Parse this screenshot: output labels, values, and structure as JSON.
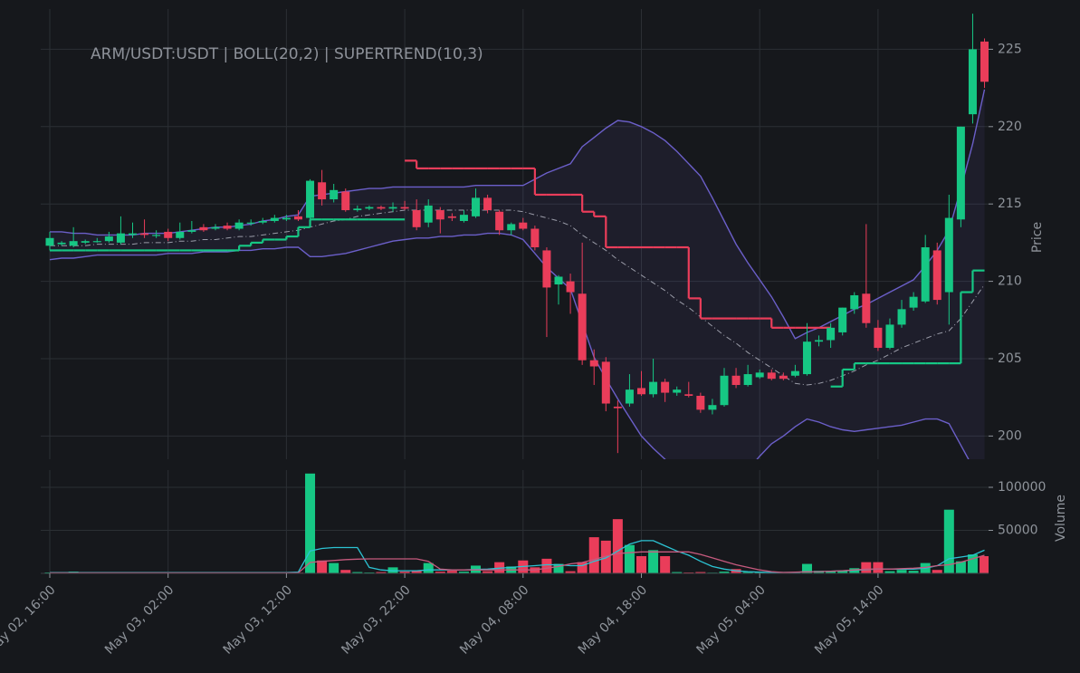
{
  "chart_data": {
    "type": "candlestick",
    "title": "ARM/USDT:USDT | BOLL(20,2) | SUPERTREND(10,3)",
    "x": [
      "May 02, 16:00",
      "May 02, 17:00",
      "May 02, 18:00",
      "May 02, 19:00",
      "May 02, 20:00",
      "May 02, 21:00",
      "May 02, 22:00",
      "May 02, 23:00",
      "May 03, 00:00",
      "May 03, 01:00",
      "May 03, 02:00",
      "May 03, 03:00",
      "May 03, 04:00",
      "May 03, 05:00",
      "May 03, 06:00",
      "May 03, 07:00",
      "May 03, 08:00",
      "May 03, 09:00",
      "May 03, 10:00",
      "May 03, 11:00",
      "May 03, 12:00",
      "May 03, 13:00",
      "May 03, 14:00",
      "May 03, 15:00",
      "May 03, 16:00",
      "May 03, 17:00",
      "May 03, 18:00",
      "May 03, 19:00",
      "May 03, 20:00",
      "May 03, 21:00",
      "May 03, 22:00",
      "May 03, 23:00",
      "May 04, 00:00",
      "May 04, 01:00",
      "May 04, 02:00",
      "May 04, 03:00",
      "May 04, 04:00",
      "May 04, 05:00",
      "May 04, 06:00",
      "May 04, 07:00",
      "May 04, 08:00",
      "May 04, 09:00",
      "May 04, 10:00",
      "May 04, 11:00",
      "May 04, 12:00",
      "May 04, 13:00",
      "May 04, 14:00",
      "May 04, 15:00",
      "May 04, 16:00",
      "May 04, 17:00",
      "May 04, 18:00",
      "May 04, 19:00",
      "May 04, 20:00",
      "May 04, 21:00",
      "May 04, 22:00",
      "May 04, 23:00",
      "May 05, 00:00",
      "May 05, 01:00",
      "May 05, 02:00",
      "May 05, 03:00",
      "May 05, 04:00",
      "May 05, 05:00",
      "May 05, 06:00",
      "May 05, 07:00",
      "May 05, 08:00",
      "May 05, 09:00",
      "May 05, 10:00",
      "May 05, 11:00",
      "May 05, 12:00",
      "May 05, 13:00",
      "May 05, 14:00",
      "May 05, 15:00",
      "May 05, 16:00",
      "May 05, 17:00",
      "May 05, 18:00",
      "May 05, 19:00",
      "May 05, 20:00",
      "May 05, 21:00",
      "May 05, 22:00",
      "May 05, 23:00"
    ],
    "xticks": [
      "May 02, 16:00",
      "May 03, 02:00",
      "May 03, 12:00",
      "May 03, 22:00",
      "May 04, 08:00",
      "May 04, 18:00",
      "May 05, 04:00",
      "May 05, 14:00"
    ],
    "open": [
      212.3,
      212.4,
      212.3,
      212.5,
      212.6,
      212.6,
      212.5,
      213.0,
      213.1,
      213.0,
      213.2,
      212.8,
      213.2,
      213.5,
      213.4,
      213.6,
      213.4,
      213.8,
      213.8,
      213.9,
      214.0,
      214.2,
      214.1,
      216.4,
      215.3,
      215.8,
      214.6,
      214.7,
      214.8,
      214.7,
      214.8,
      214.6,
      213.8,
      214.6,
      214.2,
      213.9,
      214.2,
      215.4,
      214.5,
      213.3,
      213.8,
      213.4,
      212.0,
      209.8,
      210.0,
      209.2,
      204.9,
      204.8,
      201.9,
      202.1,
      203.1,
      202.7,
      203.5,
      202.8,
      202.7,
      202.6,
      201.7,
      202.0,
      203.9,
      203.3,
      203.8,
      204.1,
      203.9,
      203.9,
      204.0,
      206.1,
      206.2,
      206.7,
      208.2,
      209.2,
      207.0,
      205.7,
      207.2,
      208.3,
      208.7,
      212.0,
      209.3,
      214.0,
      220.8,
      225.5
    ],
    "high": [
      213.2,
      212.6,
      213.5,
      212.7,
      212.8,
      213.2,
      214.2,
      213.8,
      214.0,
      213.3,
      213.4,
      213.8,
      213.9,
      213.7,
      213.7,
      213.8,
      214.0,
      214.0,
      214.1,
      214.3,
      214.3,
      214.6,
      216.6,
      217.2,
      216.3,
      216.0,
      214.9,
      214.9,
      214.9,
      215.1,
      215.2,
      215.3,
      215.3,
      214.8,
      214.4,
      214.6,
      216.0,
      215.6,
      214.6,
      213.8,
      214.1,
      213.6,
      212.2,
      210.4,
      210.5,
      212.5,
      205.6,
      205.1,
      202.3,
      204.0,
      204.2,
      205.0,
      203.7,
      203.2,
      203.5,
      202.8,
      202.4,
      204.4,
      204.4,
      204.6,
      204.3,
      204.3,
      204.1,
      204.6,
      207.3,
      206.5,
      207.3,
      208.3,
      209.3,
      213.7,
      207.5,
      207.6,
      208.8,
      209.3,
      213.0,
      212.5,
      215.6,
      220.0,
      227.3,
      225.7
    ],
    "low": [
      212.0,
      212.3,
      212.2,
      212.4,
      212.5,
      212.5,
      212.4,
      212.8,
      212.8,
      212.8,
      212.6,
      212.7,
      213.1,
      213.2,
      213.3,
      213.3,
      213.3,
      213.6,
      213.7,
      213.8,
      213.9,
      213.9,
      214.0,
      214.9,
      215.1,
      214.5,
      214.5,
      214.6,
      214.6,
      214.5,
      214.6,
      213.3,
      213.5,
      213.1,
      213.9,
      213.8,
      214.1,
      214.4,
      213.0,
      213.0,
      213.3,
      212.0,
      206.4,
      208.5,
      207.9,
      204.6,
      203.3,
      201.6,
      198.9,
      201.9,
      202.6,
      202.5,
      202.2,
      202.6,
      202.5,
      201.5,
      201.4,
      201.9,
      203.1,
      203.2,
      203.7,
      203.6,
      203.6,
      203.8,
      203.9,
      205.8,
      205.7,
      206.5,
      207.9,
      207.0,
      205.5,
      205.6,
      207.0,
      208.1,
      208.6,
      208.5,
      207.2,
      213.5,
      220.2,
      222.5
    ],
    "close": [
      212.8,
      212.5,
      212.6,
      212.6,
      212.6,
      212.9,
      213.1,
      213.1,
      213.0,
      213.0,
      212.8,
      213.2,
      213.3,
      213.3,
      213.5,
      213.4,
      213.8,
      213.8,
      213.9,
      214.1,
      214.1,
      214.0,
      216.5,
      215.3,
      215.9,
      214.6,
      214.7,
      214.8,
      214.7,
      214.8,
      214.7,
      213.5,
      214.9,
      214.0,
      214.1,
      214.3,
      215.4,
      214.6,
      213.3,
      213.7,
      213.4,
      212.2,
      209.6,
      210.3,
      209.3,
      204.9,
      204.5,
      202.1,
      201.8,
      203.0,
      202.7,
      203.5,
      202.8,
      203.0,
      202.6,
      201.7,
      202.0,
      203.9,
      203.3,
      204.0,
      204.1,
      203.7,
      203.7,
      204.2,
      206.1,
      206.2,
      207.0,
      208.3,
      209.1,
      207.3,
      205.7,
      207.2,
      208.2,
      209.0,
      212.2,
      208.8,
      214.1,
      220.0,
      225.0,
      222.9
    ],
    "up_color": "#16c784",
    "down_color": "#ea3d5a",
    "bollinger": {
      "color": "#6b5fc9",
      "middle_color": "#9a9ca8",
      "upper": [
        213.2,
        213.2,
        213.1,
        213.1,
        213.0,
        213.0,
        213.0,
        213.0,
        213.1,
        213.1,
        213.1,
        213.2,
        213.3,
        213.4,
        213.5,
        213.5,
        213.6,
        213.7,
        213.9,
        214.0,
        214.2,
        214.3,
        215.5,
        215.6,
        215.7,
        215.8,
        215.9,
        216.0,
        216.0,
        216.1,
        216.1,
        216.1,
        216.1,
        216.1,
        216.1,
        216.1,
        216.2,
        216.2,
        216.2,
        216.2,
        216.2,
        216.6,
        217.0,
        217.3,
        217.6,
        218.7,
        219.3,
        219.9,
        220.4,
        220.3,
        220.0,
        219.6,
        219.1,
        218.4,
        217.6,
        216.8,
        215.4,
        213.9,
        212.4,
        211.2,
        210.1,
        209.0,
        207.7,
        206.3,
        206.7,
        207.0,
        207.4,
        207.8,
        208.2,
        208.5,
        208.9,
        209.3,
        209.7,
        210.1,
        211.0,
        212.0,
        213.3,
        216.0,
        218.9,
        222.4
      ],
      "middle": [
        212.3,
        212.3,
        212.3,
        212.3,
        212.4,
        212.4,
        212.4,
        212.4,
        212.5,
        212.5,
        212.5,
        212.6,
        212.6,
        212.7,
        212.7,
        212.8,
        212.9,
        212.9,
        213.0,
        213.1,
        213.2,
        213.3,
        213.5,
        213.7,
        213.9,
        214.0,
        214.2,
        214.3,
        214.4,
        214.5,
        214.6,
        214.6,
        214.6,
        214.6,
        214.6,
        214.6,
        214.6,
        214.6,
        214.6,
        214.6,
        214.5,
        214.3,
        214.1,
        213.9,
        213.6,
        213.0,
        212.5,
        212.0,
        211.4,
        210.9,
        210.4,
        209.9,
        209.4,
        208.8,
        208.3,
        207.7,
        207.1,
        206.5,
        206.0,
        205.4,
        204.9,
        204.4,
        203.9,
        203.4,
        203.3,
        203.4,
        203.6,
        203.9,
        204.2,
        204.6,
        204.9,
        205.3,
        205.7,
        206.0,
        206.3,
        206.6,
        206.8,
        207.6,
        208.7,
        209.8
      ],
      "lower": [
        211.4,
        211.5,
        211.5,
        211.6,
        211.7,
        211.7,
        211.7,
        211.7,
        211.7,
        211.7,
        211.8,
        211.8,
        211.8,
        211.9,
        211.9,
        211.9,
        212.0,
        212.0,
        212.1,
        212.1,
        212.2,
        212.2,
        211.6,
        211.6,
        211.7,
        211.8,
        212.0,
        212.2,
        212.4,
        212.6,
        212.7,
        212.8,
        212.8,
        212.9,
        212.9,
        213.0,
        213.0,
        213.1,
        213.1,
        213.0,
        212.7,
        211.8,
        210.9,
        210.2,
        209.5,
        207.3,
        205.1,
        203.7,
        202.4,
        201.2,
        200.0,
        199.2,
        198.5,
        197.8,
        197.2,
        196.8,
        196.6,
        196.6,
        196.8,
        197.8,
        198.7,
        199.5,
        200.0,
        200.6,
        201.1,
        200.9,
        200.6,
        200.4,
        200.3,
        200.4,
        200.5,
        200.6,
        200.7,
        200.9,
        201.1,
        201.1,
        200.8,
        199.4,
        198.0,
        197.0
      ]
    },
    "supertrend_up": [
      212.0,
      212.0,
      212.0,
      212.0,
      212.0,
      212.0,
      212.0,
      212.0,
      212.0,
      212.0,
      212.0,
      212.0,
      212.0,
      212.0,
      212.0,
      212.0,
      212.3,
      212.5,
      212.7,
      212.7,
      212.9,
      213.5,
      214.0,
      214.0,
      214.0,
      214.0,
      214.0,
      214.0,
      214.0,
      214.0,
      null,
      null,
      null,
      null,
      null,
      null,
      null,
      null,
      null,
      null,
      null,
      null,
      null,
      null,
      null,
      null,
      null,
      null,
      null,
      null,
      null,
      null,
      null,
      null,
      null,
      null,
      null,
      null,
      null,
      null,
      null,
      null,
      null,
      null,
      null,
      null,
      203.2,
      204.3,
      204.7,
      204.7,
      204.7,
      204.7,
      204.7,
      204.7,
      204.7,
      204.7,
      204.7,
      209.3,
      210.7,
      210.7
    ],
    "supertrend_down": [
      null,
      null,
      null,
      null,
      null,
      null,
      null,
      null,
      null,
      null,
      null,
      null,
      null,
      null,
      null,
      null,
      null,
      null,
      null,
      null,
      null,
      null,
      null,
      null,
      null,
      null,
      null,
      null,
      null,
      null,
      217.8,
      217.3,
      217.3,
      217.3,
      217.3,
      217.3,
      217.3,
      217.3,
      217.3,
      217.3,
      217.3,
      215.6,
      215.6,
      215.6,
      215.6,
      214.5,
      214.2,
      212.2,
      212.2,
      212.2,
      212.2,
      212.2,
      212.2,
      212.2,
      208.9,
      207.6,
      207.6,
      207.6,
      207.6,
      207.6,
      207.6,
      207.0,
      207.0,
      207.0,
      207.0,
      207.0,
      null,
      null,
      null,
      null,
      null,
      null,
      null,
      null,
      null,
      null,
      null,
      null,
      null,
      null
    ],
    "ylabel": "Price",
    "ylim": [
      198.5,
      227.6
    ],
    "yticks": [
      200,
      205,
      210,
      215,
      220,
      225
    ],
    "grid": true,
    "volume": {
      "ylabel": "Volume",
      "ylim": [
        0,
        120000
      ],
      "yticks": [
        50000,
        100000
      ],
      "values": [
        1000,
        500,
        2000,
        500,
        500,
        800,
        1500,
        500,
        400,
        400,
        500,
        600,
        500,
        400,
        500,
        400,
        600,
        500,
        500,
        600,
        700,
        800,
        116000,
        15000,
        12000,
        4000,
        1500,
        1000,
        1500,
        7000,
        2000,
        3000,
        12000,
        2000,
        3000,
        2000,
        9000,
        2500,
        13000,
        8000,
        15000,
        7000,
        17000,
        11000,
        2500,
        13000,
        42000,
        38000,
        63000,
        33000,
        20000,
        27000,
        20000,
        1500,
        1000,
        1500,
        800,
        2000,
        5000,
        1500,
        1200,
        1500,
        1000,
        1500,
        11000,
        3000,
        2500,
        3000,
        6000,
        13000,
        13000,
        2500,
        4000,
        3000,
        12000,
        4000,
        74000,
        14000,
        22000,
        20000
      ],
      "fast_ma_color": "#2cc3d3",
      "slow_ma_color": "#c65a7e",
      "fast_ma": [
        800,
        800,
        800,
        800,
        800,
        800,
        800,
        800,
        800,
        800,
        800,
        800,
        800,
        800,
        800,
        800,
        800,
        800,
        800,
        800,
        800,
        1500,
        26000,
        29000,
        30000,
        30000,
        30000,
        7000,
        4000,
        3000,
        3000,
        3000,
        4000,
        4000,
        4000,
        4000,
        4500,
        5000,
        6000,
        7000,
        8000,
        9000,
        10000,
        10000,
        9000,
        9000,
        14000,
        18000,
        26000,
        34000,
        38000,
        38000,
        32000,
        26000,
        21000,
        14000,
        8000,
        5000,
        3000,
        2000,
        1500,
        1000,
        1000,
        1200,
        2000,
        2000,
        2500,
        3000,
        3500,
        4500,
        5000,
        5000,
        5000,
        5000,
        6000,
        9000,
        17000,
        19000,
        21000,
        27000
      ],
      "slow_ma": [
        500,
        500,
        500,
        500,
        500,
        500,
        500,
        500,
        500,
        500,
        500,
        500,
        500,
        500,
        500,
        500,
        500,
        500,
        500,
        500,
        500,
        500,
        12600,
        14000,
        15000,
        16000,
        16500,
        16800,
        16800,
        16800,
        16800,
        16800,
        14000,
        5000,
        4000,
        4000,
        4000,
        4000,
        4000,
        4000,
        4000,
        4000,
        6000,
        8000,
        11000,
        12600,
        16000,
        20000,
        23000,
        24000,
        25000,
        25000,
        25000,
        25000,
        25000,
        22000,
        18000,
        14000,
        10000,
        7000,
        4000,
        2000,
        1000,
        1500,
        1800,
        2000,
        2500,
        3000,
        4000,
        5000,
        5000,
        5000,
        5500,
        6000,
        7000,
        9000,
        10000,
        13000,
        17000,
        21000
      ]
    }
  }
}
